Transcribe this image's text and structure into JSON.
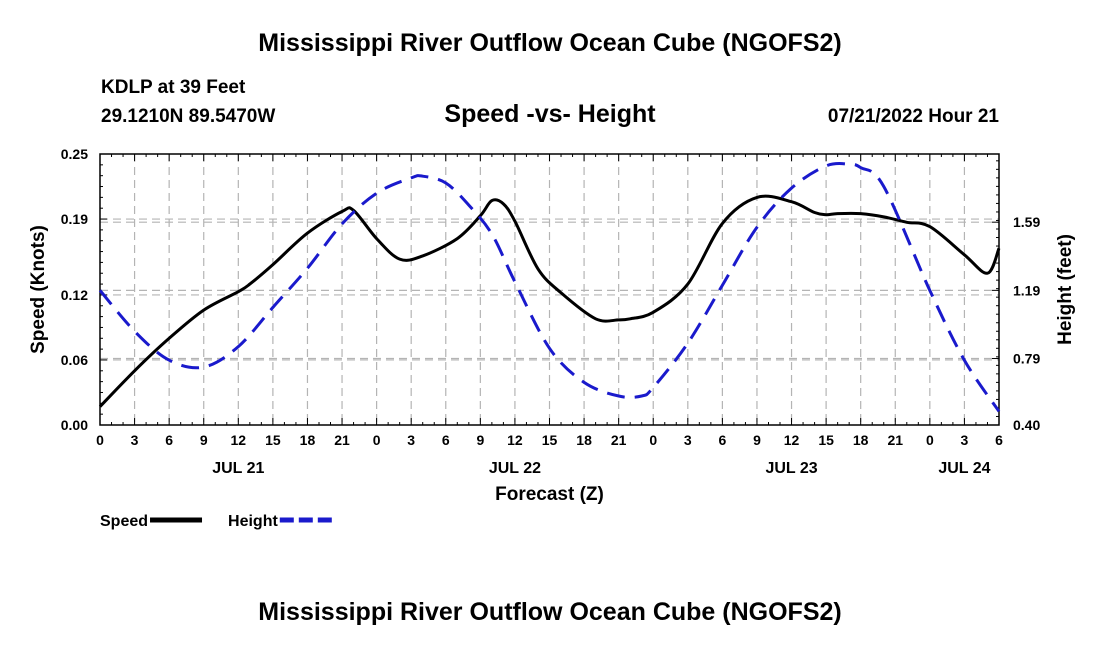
{
  "header": {
    "title": "Mississippi River Outflow Ocean Cube (NGOFS2)",
    "station": "KDLP at 39 Feet",
    "coords": "29.1210N  89.5470W",
    "datetime": "07/21/2022 Hour 21"
  },
  "footer": {
    "title": "Mississippi River Outflow Ocean Cube (NGOFS2)"
  },
  "chart_data": {
    "type": "line",
    "title": "Speed -vs- Height",
    "xlabel": "Forecast (Z)",
    "ylabel": "Speed (Knots)",
    "y2label": "Height (feet)",
    "x_unit": "hours from JUL 21 00Z",
    "xlim": [
      0,
      78
    ],
    "ylim": [
      0,
      0.25
    ],
    "y2lim": [
      0.4,
      1.99
    ],
    "x_tick_labels": [
      "0",
      "3",
      "6",
      "9",
      "12",
      "15",
      "18",
      "21",
      "0",
      "3",
      "6",
      "9",
      "12",
      "15",
      "18",
      "21",
      "0",
      "3",
      "6",
      "9",
      "12",
      "15",
      "18",
      "21",
      "0",
      "3",
      "6"
    ],
    "y_tick_values": [
      0.0,
      0.06,
      0.12,
      0.19,
      0.25
    ],
    "y_tick_labels": [
      "0.00",
      "0.06",
      "0.12",
      "0.19",
      "0.25"
    ],
    "y2_tick_values": [
      0.4,
      0.79,
      1.19,
      1.59
    ],
    "y2_tick_labels": [
      "0.40",
      "0.79",
      "1.19",
      "1.59"
    ],
    "day_labels": [
      {
        "label": "JUL 21",
        "x": 12
      },
      {
        "label": "JUL 22",
        "x": 36
      },
      {
        "label": "JUL 23",
        "x": 60
      },
      {
        "label": "JUL 24",
        "x": 75
      }
    ],
    "grid": true,
    "legend_position": "bottom-left",
    "series": [
      {
        "name": "Speed",
        "axis": "left",
        "color": "#000000",
        "style": "solid",
        "x": [
          0,
          3,
          6,
          9,
          12,
          13,
          15,
          18,
          21,
          22,
          24,
          26,
          28,
          31,
          33,
          34,
          35,
          36,
          38,
          40,
          43,
          45,
          46,
          48,
          51,
          54,
          57,
          60,
          62,
          63,
          64,
          66,
          68,
          70,
          72,
          75,
          77,
          78
        ],
        "values": [
          0.017,
          0.05,
          0.08,
          0.106,
          0.123,
          0.13,
          0.148,
          0.177,
          0.197,
          0.198,
          0.172,
          0.153,
          0.156,
          0.172,
          0.193,
          0.207,
          0.204,
          0.188,
          0.144,
          0.122,
          0.098,
          0.097,
          0.098,
          0.104,
          0.13,
          0.186,
          0.21,
          0.206,
          0.196,
          0.194,
          0.195,
          0.195,
          0.192,
          0.187,
          0.183,
          0.157,
          0.14,
          0.163
        ]
      },
      {
        "name": "Height",
        "axis": "right",
        "color": "#1a1acc",
        "style": "dashed",
        "x": [
          0,
          3,
          6,
          9,
          12,
          15,
          18,
          21,
          24,
          27,
          28,
          30,
          32,
          34,
          36,
          39,
          42,
          45,
          47,
          48,
          51,
          54,
          57,
          60,
          63,
          65,
          66,
          68,
          72,
          75,
          78
        ],
        "values": [
          1.19,
          0.95,
          0.78,
          0.74,
          0.86,
          1.09,
          1.32,
          1.58,
          1.76,
          1.85,
          1.86,
          1.82,
          1.69,
          1.52,
          1.24,
          0.85,
          0.65,
          0.57,
          0.57,
          0.62,
          0.88,
          1.22,
          1.56,
          1.79,
          1.92,
          1.93,
          1.91,
          1.8,
          1.19,
          0.78,
          0.48
        ]
      }
    ]
  }
}
